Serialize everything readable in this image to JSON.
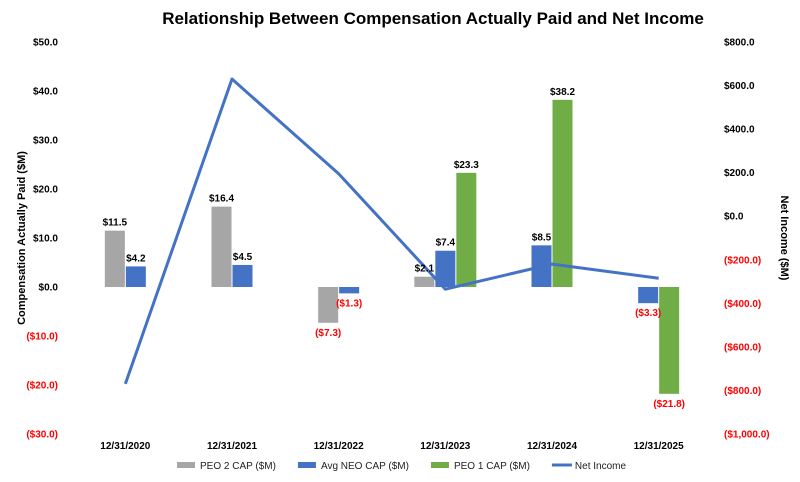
{
  "chart_data": {
    "type": "bar",
    "title": "Relationship Between Compensation Actually Paid and Net Income",
    "categories": [
      "12/31/2020",
      "12/31/2021",
      "12/31/2022",
      "12/31/2023",
      "12/31/2024",
      "12/31/2025"
    ],
    "ylabel": "Compensation Actually Paid ($M)",
    "y2label": "Net Income ($M)",
    "ylim": [
      -30,
      50
    ],
    "y2lim": [
      -1000,
      800
    ],
    "y_ticks": [
      50,
      40,
      30,
      20,
      10,
      0,
      -10,
      -20,
      -30
    ],
    "y_tick_labels": [
      "$50.0",
      "$40.0",
      "$30.0",
      "$20.0",
      "$10.0",
      "$0.0",
      "($10.0)",
      "($20.0)",
      "($30.0)"
    ],
    "y2_ticks": [
      800,
      600,
      400,
      200,
      0,
      -200,
      -400,
      -600,
      -800,
      -1000
    ],
    "y2_tick_labels": [
      "$800.0",
      "$600.0",
      "$400.0",
      "$200.0",
      "$0.0",
      "($200.0)",
      "($400.0)",
      "($600.0)",
      "($800.0)",
      "($1,000.0)"
    ],
    "series": [
      {
        "name": "PEO 2 CAP ($M)",
        "kind": "bar",
        "axis": "left",
        "color": "#a6a6a6",
        "values": [
          11.5,
          16.4,
          -7.3,
          2.1,
          null,
          null
        ],
        "labels": [
          "$11.5",
          "$16.4",
          "($7.3)",
          "$2.1",
          "",
          ""
        ]
      },
      {
        "name": "Avg NEO CAP ($M)",
        "kind": "bar",
        "axis": "left",
        "color": "#4472c4",
        "values": [
          4.2,
          4.5,
          -1.3,
          7.4,
          8.5,
          -3.3
        ],
        "labels": [
          "$4.2",
          "$4.5",
          "($1.3)",
          "$7.4",
          "$8.5",
          "($3.3)"
        ]
      },
      {
        "name": "PEO 1 CAP ($M)",
        "kind": "bar",
        "axis": "left",
        "color": "#70ad47",
        "values": [
          null,
          null,
          null,
          23.3,
          38.2,
          -21.8
        ],
        "labels": [
          "",
          "",
          "",
          "$23.3",
          "$38.2",
          "($21.8)"
        ]
      },
      {
        "name": "Net Income",
        "kind": "line",
        "axis": "right",
        "color": "#4472c4",
        "values": [
          -770,
          630,
          195,
          -335,
          -220,
          -285
        ]
      }
    ],
    "negative_label_color": "#ff0000",
    "legend_position": "bottom",
    "grid": false
  }
}
